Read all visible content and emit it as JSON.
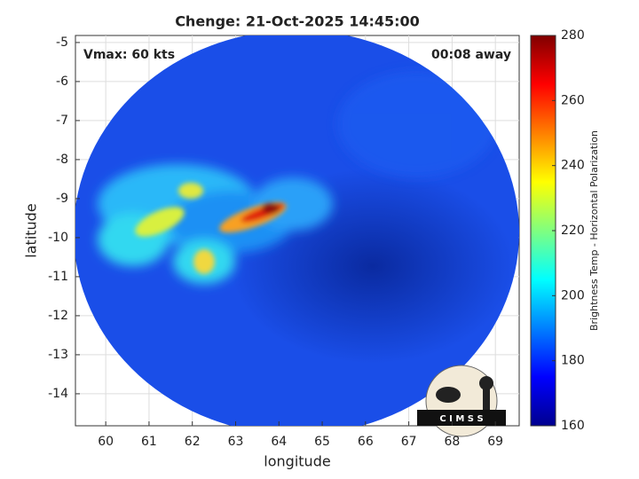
{
  "chart_data": {
    "type": "heatmap",
    "title": "Chenge: 21-Oct-2025 14:45:00",
    "annotations": [
      "Vmax: 60 kts",
      "00:08 away"
    ],
    "xlabel": "longitude",
    "ylabel": "latitude",
    "xlim": [
      59.3,
      69.55
    ],
    "xticks": [
      60,
      61,
      62,
      63,
      64,
      65,
      66,
      67,
      68,
      69
    ],
    "ylim": [
      -14.82,
      -4.82
    ],
    "yticks": [
      -14,
      -13,
      -12,
      -11,
      -10,
      -9,
      -8,
      -7,
      -6,
      -5
    ],
    "grid": true,
    "colorbar": {
      "label": "Brightness Temp - Horizontal Polarization",
      "lim": [
        160,
        280
      ],
      "ticks": [
        160,
        180,
        200,
        220,
        240,
        260,
        280
      ],
      "colormap": "jet"
    },
    "logo_text": "C I M S S"
  }
}
